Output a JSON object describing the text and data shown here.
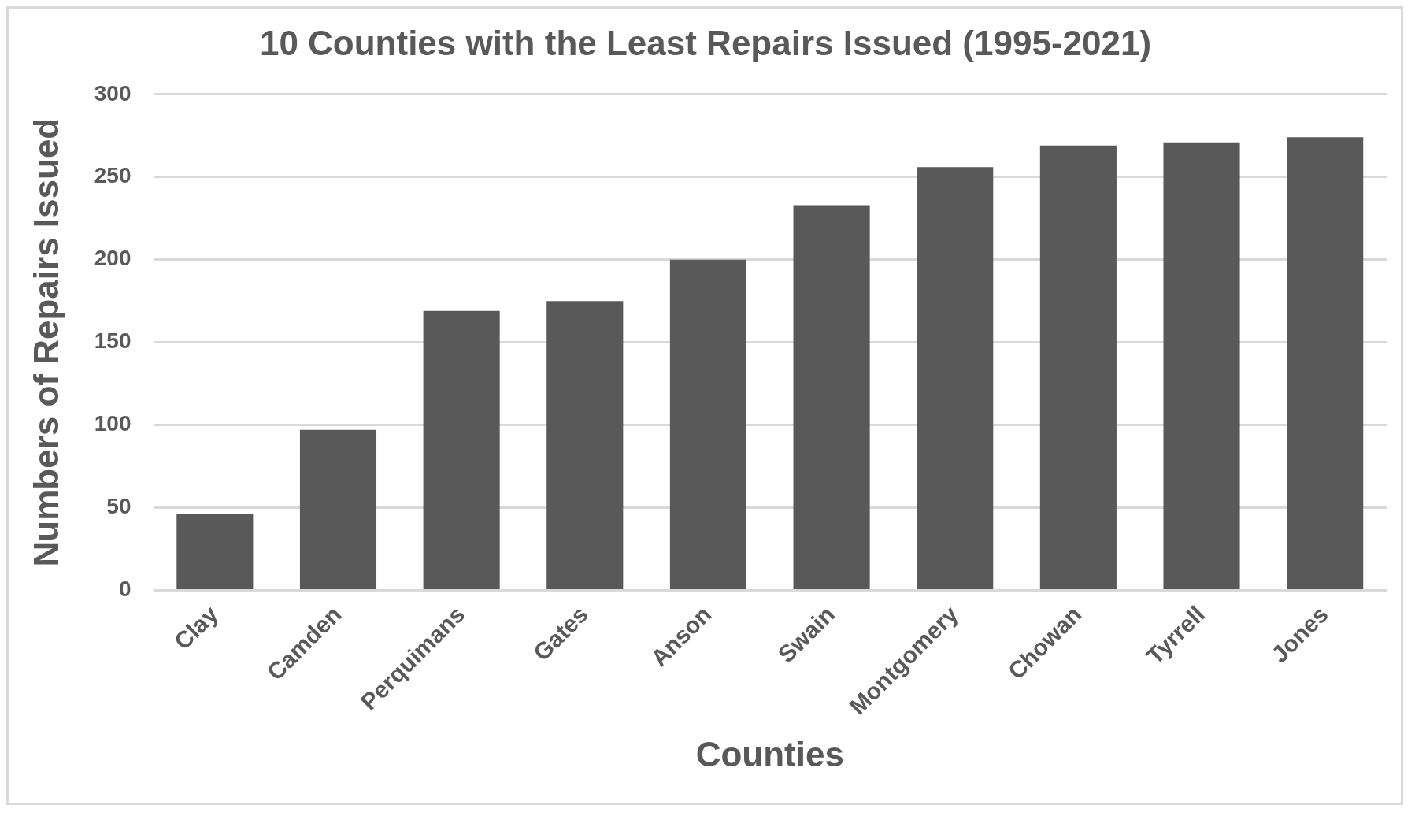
{
  "chart_data": {
    "type": "bar",
    "title": "10 Counties with the Least Repairs Issued (1995-2021)",
    "xlabel": "Counties",
    "ylabel": "Numbers of Repairs Issued",
    "categories": [
      "Clay",
      "Camden",
      "Perquimans",
      "Gates",
      "Anson",
      "Swain",
      "Montgomery",
      "Chowan",
      "Tyrrell",
      "Jones"
    ],
    "values": [
      46,
      97,
      169,
      175,
      200,
      233,
      256,
      269,
      271,
      274
    ],
    "color": "#595959",
    "ylim": [
      0,
      300
    ],
    "yticks": [
      0,
      50,
      100,
      150,
      200,
      250,
      300
    ],
    "grid": "y",
    "legend": false
  }
}
